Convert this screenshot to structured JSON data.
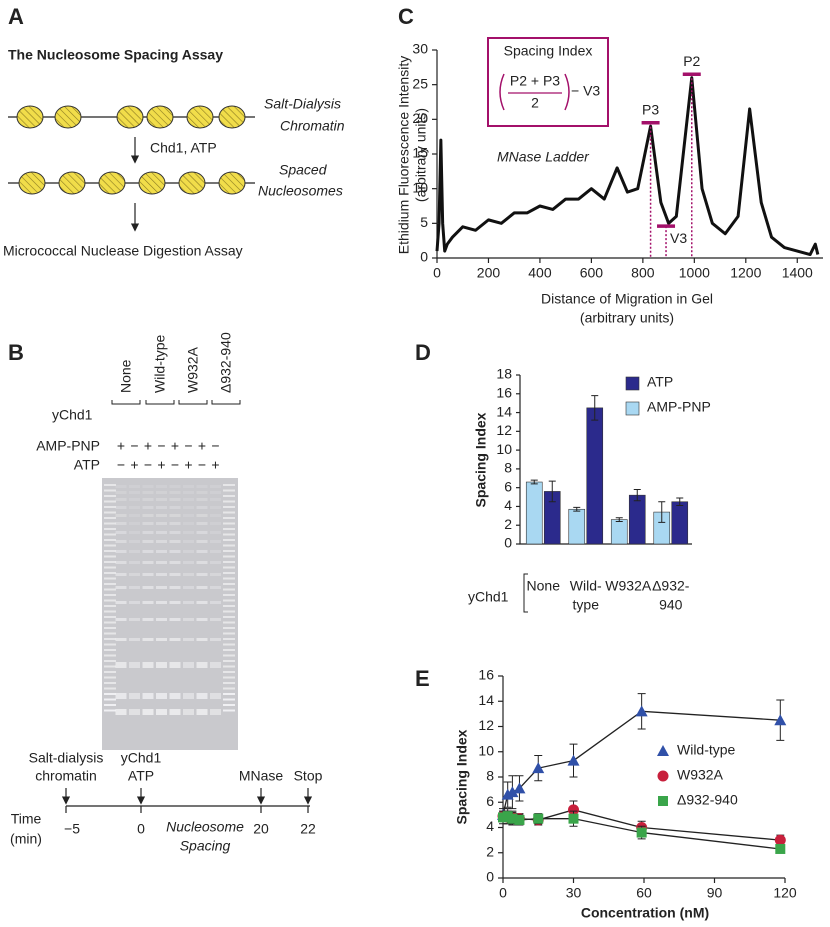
{
  "panel_a": {
    "label": "A",
    "title": "The Nucleosome Spacing Assay",
    "start": [
      "Salt-Dialysis",
      "Chromatin"
    ],
    "step": "Chd1, ATP",
    "result": [
      "Spaced",
      "Nucleosomes"
    ],
    "assay": "Micrococcal Nuclease Digestion Assay"
  },
  "panel_b": {
    "label": "B",
    "protein_label": "yChd1",
    "lanes": [
      "None",
      "Wild-type",
      "W932A",
      "Δ932-940"
    ],
    "amp_pnp_label": "AMP-PNP",
    "atp_label": "ATP",
    "amp_pnp": [
      "+",
      "−",
      "+",
      "−",
      "+",
      "−",
      "+",
      "−"
    ],
    "atp": [
      "−",
      "+",
      "−",
      "+",
      "−",
      "+",
      "−",
      "+"
    ],
    "timeline": {
      "label": [
        "Time",
        "(min)"
      ],
      "interval": [
        "Nucleosome",
        "Spacing"
      ],
      "events": [
        {
          "label": [
            "Salt-dialysis",
            "chromatin"
          ],
          "time": "−5"
        },
        {
          "label": [
            "yChd1",
            "ATP"
          ],
          "time": "0"
        },
        {
          "label": [
            "MNase"
          ],
          "time": "20"
        },
        {
          "label": [
            "Stop"
          ],
          "time": "22"
        }
      ]
    }
  },
  "chart_data": [
    {
      "type": "line",
      "label": "C",
      "color": "#111111",
      "y_label": [
        "Ethidium Fluorescence Intensity",
        "(arbitrary units)"
      ],
      "x_label": [
        "Distance of Migration in Gel",
        "(arbitrary units)"
      ],
      "annotation": "MNase Ladder",
      "box_title": "Spacing Index",
      "formula": {
        "numerator": "P2 + P3",
        "denominator": "2",
        "tail": "− V3"
      },
      "x": [
        0,
        8,
        15,
        22,
        30,
        40,
        60,
        100,
        150,
        200,
        250,
        300,
        350,
        400,
        450,
        500,
        550,
        600,
        650,
        700,
        740,
        780,
        830,
        870,
        900,
        930,
        990,
        1030,
        1070,
        1120,
        1170,
        1215,
        1260,
        1300,
        1350,
        1400,
        1450,
        1470,
        1480
      ],
      "values": [
        1,
        5,
        17,
        5,
        1,
        2,
        3,
        4.5,
        4,
        5.5,
        5,
        6.5,
        6.5,
        7.5,
        7,
        8.5,
        8.5,
        10,
        8.5,
        13,
        9.5,
        10,
        19,
        8,
        5,
        6,
        26,
        10,
        5,
        3.5,
        6,
        21.5,
        8,
        3,
        1.5,
        1,
        0.5,
        2,
        0.5
      ],
      "marker_color": "#a3106a",
      "markers": [
        {
          "label": "P3",
          "x": 830,
          "y": 19.5
        },
        {
          "label": "V3",
          "x": 890,
          "y": 4.6
        },
        {
          "label": "P2",
          "x": 990,
          "y": 26.5
        }
      ],
      "xlim": [
        0,
        1500
      ],
      "xticks": [
        0,
        200,
        400,
        600,
        800,
        1000,
        1200,
        1400
      ],
      "ylim": [
        0,
        30
      ],
      "yticks": [
        0,
        5,
        10,
        15,
        20,
        25,
        30
      ]
    },
    {
      "type": "bar",
      "label": "D",
      "y_label": "Spacing Index",
      "group_label": "yChd1",
      "categories": [
        [
          "None"
        ],
        [
          "Wild-",
          "type"
        ],
        [
          "W932A"
        ],
        [
          "Δ932-",
          "940"
        ]
      ],
      "series": [
        {
          "name": "ATP",
          "color": "#2b2a8c",
          "values": [
            5.6,
            14.5,
            5.2,
            4.5
          ],
          "errors": [
            1.1,
            1.3,
            0.6,
            0.4
          ]
        },
        {
          "name": "AMP-PNP",
          "color": "#a9d8f2",
          "values": [
            6.6,
            3.7,
            2.6,
            3.4
          ],
          "errors": [
            0.2,
            0.2,
            0.2,
            1.1
          ]
        }
      ],
      "ylim": [
        0,
        18
      ],
      "yticks": [
        0,
        2,
        4,
        6,
        8,
        10,
        12,
        14,
        16,
        18
      ]
    },
    {
      "type": "scatter-line",
      "label": "E",
      "y_label": "Spacing Index",
      "x_label": "Concentration (nM)",
      "x": [
        0,
        2,
        4,
        7,
        15,
        30,
        59,
        118
      ],
      "series": [
        {
          "name": "Wild-type",
          "color": "#3050a8",
          "marker": "triangle",
          "values": [
            5,
            6.6,
            6.8,
            7.1,
            8.7,
            9.3,
            13.2,
            12.5
          ],
          "errors": [
            0.5,
            1,
            1.3,
            1,
            1,
            1.3,
            1.4,
            1.6
          ]
        },
        {
          "name": "W932A",
          "color": "#c8203c",
          "marker": "circle",
          "values": [
            4.9,
            4.8,
            4.8,
            4.7,
            4.6,
            5.4,
            4.0,
            3.0
          ],
          "errors": [
            0.4,
            0.5,
            0.5,
            0.4,
            0.4,
            0.7,
            0.5,
            0.4
          ]
        },
        {
          "name": "Δ932-940",
          "color": "#3aa54a",
          "marker": "square",
          "values": [
            4.8,
            4.9,
            4.7,
            4.6,
            4.7,
            4.7,
            3.6,
            2.3
          ],
          "errors": [
            0.5,
            0.6,
            0.5,
            0.4,
            0.4,
            0.6,
            0.5,
            0.3
          ]
        }
      ],
      "xlim": [
        0,
        120
      ],
      "xticks": [
        0,
        30,
        60,
        90,
        120
      ],
      "ylim": [
        0,
        16
      ],
      "yticks": [
        0,
        2,
        4,
        6,
        8,
        10,
        12,
        14,
        16
      ]
    }
  ]
}
